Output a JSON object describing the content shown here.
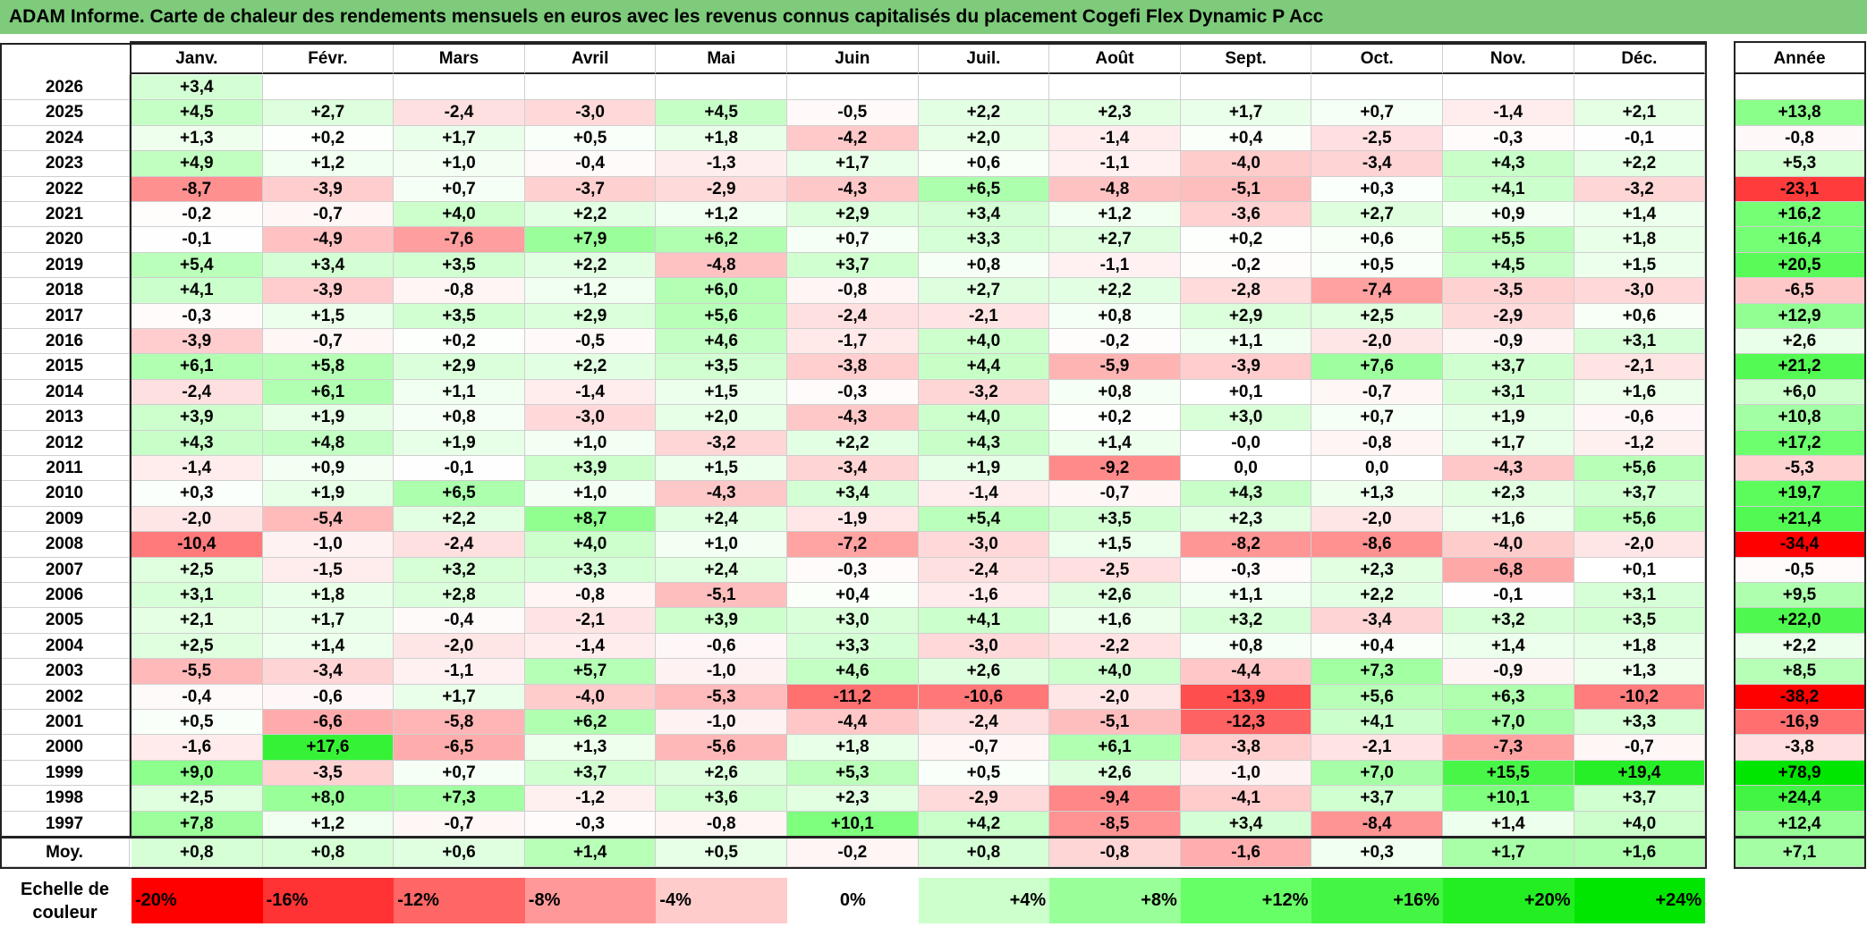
{
  "title": "ADAM Informe. Carte de chaleur des rendements mensuels en euros avec les revenus connus capitalisés du placement Cogefi Flex Dynamic P Acc",
  "chart_data": {
    "type": "heatmap",
    "title": "ADAM Informe. Carte de chaleur des rendements mensuels en euros avec les revenus connus capitalisés du placement Cogefi Flex Dynamic P Acc",
    "columns": [
      "Janv.",
      "Févr.",
      "Mars",
      "Avril",
      "Mai",
      "Juin",
      "Juil.",
      "Août",
      "Sept.",
      "Oct.",
      "Nov.",
      "Déc."
    ],
    "year_column_label": "Année",
    "rows": [
      {
        "year": "2026",
        "months": [
          "+3,4",
          "",
          "",
          "",
          "",
          "",
          "",
          "",
          "",
          "",
          "",
          ""
        ],
        "annual": ""
      },
      {
        "year": "2025",
        "months": [
          "+4,5",
          "+2,7",
          "-2,4",
          "-3,0",
          "+4,5",
          "-0,5",
          "+2,2",
          "+2,3",
          "+1,7",
          "+0,7",
          "-1,4",
          "+2,1"
        ],
        "annual": "+13,8"
      },
      {
        "year": "2024",
        "months": [
          "+1,3",
          "+0,2",
          "+1,7",
          "+0,5",
          "+1,8",
          "-4,2",
          "+2,0",
          "-1,4",
          "+0,4",
          "-2,5",
          "-0,3",
          "-0,1"
        ],
        "annual": "-0,8"
      },
      {
        "year": "2023",
        "months": [
          "+4,9",
          "+1,2",
          "+1,0",
          "-0,4",
          "-1,3",
          "+1,7",
          "+0,6",
          "-1,1",
          "-4,0",
          "-3,4",
          "+4,3",
          "+2,2"
        ],
        "annual": "+5,3"
      },
      {
        "year": "2022",
        "months": [
          "-8,7",
          "-3,9",
          "+0,7",
          "-3,7",
          "-2,9",
          "-4,3",
          "+6,5",
          "-4,8",
          "-5,1",
          "+0,3",
          "+4,1",
          "-3,2"
        ],
        "annual": "-23,1"
      },
      {
        "year": "2021",
        "months": [
          "-0,2",
          "-0,7",
          "+4,0",
          "+2,2",
          "+1,2",
          "+2,9",
          "+3,4",
          "+1,2",
          "-3,6",
          "+2,7",
          "+0,9",
          "+1,4"
        ],
        "annual": "+16,2"
      },
      {
        "year": "2020",
        "months": [
          "-0,1",
          "-4,9",
          "-7,6",
          "+7,9",
          "+6,2",
          "+0,7",
          "+3,3",
          "+2,7",
          "+0,2",
          "+0,6",
          "+5,5",
          "+1,8"
        ],
        "annual": "+16,4"
      },
      {
        "year": "2019",
        "months": [
          "+5,4",
          "+3,4",
          "+3,5",
          "+2,2",
          "-4,8",
          "+3,7",
          "+0,8",
          "-1,1",
          "-0,2",
          "+0,5",
          "+4,5",
          "+1,5"
        ],
        "annual": "+20,5"
      },
      {
        "year": "2018",
        "months": [
          "+4,1",
          "-3,9",
          "-0,8",
          "+1,2",
          "+6,0",
          "-0,8",
          "+2,7",
          "+2,2",
          "-2,8",
          "-7,4",
          "-3,5",
          "-3,0"
        ],
        "annual": "-6,5"
      },
      {
        "year": "2017",
        "months": [
          "-0,3",
          "+1,5",
          "+3,5",
          "+2,9",
          "+5,6",
          "-2,4",
          "-2,1",
          "+0,8",
          "+2,9",
          "+2,5",
          "-2,9",
          "+0,6"
        ],
        "annual": "+12,9"
      },
      {
        "year": "2016",
        "months": [
          "-3,9",
          "-0,7",
          "+0,2",
          "-0,5",
          "+4,6",
          "-1,7",
          "+4,0",
          "-0,2",
          "+1,1",
          "-2,0",
          "-0,9",
          "+3,1"
        ],
        "annual": "+2,6"
      },
      {
        "year": "2015",
        "months": [
          "+6,1",
          "+5,8",
          "+2,9",
          "+2,2",
          "+3,5",
          "-3,8",
          "+4,4",
          "-5,9",
          "-3,9",
          "+7,6",
          "+3,7",
          "-2,1"
        ],
        "annual": "+21,2"
      },
      {
        "year": "2014",
        "months": [
          "-2,4",
          "+6,1",
          "+1,1",
          "-1,4",
          "+1,5",
          "-0,3",
          "-3,2",
          "+0,8",
          "+0,1",
          "-0,7",
          "+3,1",
          "+1,6"
        ],
        "annual": "+6,0"
      },
      {
        "year": "2013",
        "months": [
          "+3,9",
          "+1,9",
          "+0,8",
          "-3,0",
          "+2,0",
          "-4,3",
          "+4,0",
          "+0,2",
          "+3,0",
          "+0,7",
          "+1,9",
          "-0,6"
        ],
        "annual": "+10,8"
      },
      {
        "year": "2012",
        "months": [
          "+4,3",
          "+4,8",
          "+1,9",
          "+1,0",
          "-3,2",
          "+2,2",
          "+4,3",
          "+1,4",
          "-0,0",
          "-0,8",
          "+1,7",
          "-1,2"
        ],
        "annual": "+17,2"
      },
      {
        "year": "2011",
        "months": [
          "-1,4",
          "+0,9",
          "-0,1",
          "+3,9",
          "+1,5",
          "-3,4",
          "+1,9",
          "-9,2",
          "0,0",
          "0,0",
          "-4,3",
          "+5,6"
        ],
        "annual": "-5,3"
      },
      {
        "year": "2010",
        "months": [
          "+0,3",
          "+1,9",
          "+6,5",
          "+1,0",
          "-4,3",
          "+3,4",
          "-1,4",
          "-0,7",
          "+4,3",
          "+1,3",
          "+2,3",
          "+3,7"
        ],
        "annual": "+19,7"
      },
      {
        "year": "2009",
        "months": [
          "-2,0",
          "-5,4",
          "+2,2",
          "+8,7",
          "+2,4",
          "-1,9",
          "+5,4",
          "+3,5",
          "+2,3",
          "-2,0",
          "+1,6",
          "+5,6"
        ],
        "annual": "+21,4"
      },
      {
        "year": "2008",
        "months": [
          "-10,4",
          "-1,0",
          "-2,4",
          "+4,0",
          "+1,0",
          "-7,2",
          "-3,0",
          "+1,5",
          "-8,2",
          "-8,6",
          "-4,0",
          "-2,0"
        ],
        "annual": "-34,4"
      },
      {
        "year": "2007",
        "months": [
          "+2,5",
          "-1,5",
          "+3,2",
          "+3,3",
          "+2,4",
          "-0,3",
          "-2,4",
          "-2,5",
          "-0,3",
          "+2,3",
          "-6,8",
          "+0,1"
        ],
        "annual": "-0,5"
      },
      {
        "year": "2006",
        "months": [
          "+3,1",
          "+1,8",
          "+2,8",
          "-0,8",
          "-5,1",
          "+0,4",
          "-1,6",
          "+2,6",
          "+1,1",
          "+2,2",
          "-0,1",
          "+3,1"
        ],
        "annual": "+9,5"
      },
      {
        "year": "2005",
        "months": [
          "+2,1",
          "+1,7",
          "-0,4",
          "-2,1",
          "+3,9",
          "+3,0",
          "+4,1",
          "+1,6",
          "+3,2",
          "-3,4",
          "+3,2",
          "+3,5"
        ],
        "annual": "+22,0"
      },
      {
        "year": "2004",
        "months": [
          "+2,5",
          "+1,4",
          "-2,0",
          "-1,4",
          "-0,6",
          "+3,3",
          "-3,0",
          "-2,2",
          "+0,8",
          "+0,4",
          "+1,4",
          "+1,8"
        ],
        "annual": "+2,2"
      },
      {
        "year": "2003",
        "months": [
          "-5,5",
          "-3,4",
          "-1,1",
          "+5,7",
          "-1,0",
          "+4,6",
          "+2,6",
          "+4,0",
          "-4,4",
          "+7,3",
          "-0,9",
          "+1,3"
        ],
        "annual": "+8,5"
      },
      {
        "year": "2002",
        "months": [
          "-0,4",
          "-0,6",
          "+1,7",
          "-4,0",
          "-5,3",
          "-11,2",
          "-10,6",
          "-2,0",
          "-13,9",
          "+5,6",
          "+6,3",
          "-10,2"
        ],
        "annual": "-38,2"
      },
      {
        "year": "2001",
        "months": [
          "+0,5",
          "-6,6",
          "-5,8",
          "+6,2",
          "-1,0",
          "-4,4",
          "-2,4",
          "-5,1",
          "-12,3",
          "+4,1",
          "+7,0",
          "+3,3"
        ],
        "annual": "-16,9"
      },
      {
        "year": "2000",
        "months": [
          "-1,6",
          "+17,6",
          "-6,5",
          "+1,3",
          "-5,6",
          "+1,8",
          "-0,7",
          "+6,1",
          "-3,8",
          "-2,1",
          "-7,3",
          "-0,7"
        ],
        "annual": "-3,8"
      },
      {
        "year": "1999",
        "months": [
          "+9,0",
          "-3,5",
          "+0,7",
          "+3,7",
          "+2,6",
          "+5,3",
          "+0,5",
          "+2,6",
          "-1,0",
          "+7,0",
          "+15,5",
          "+19,4"
        ],
        "annual": "+78,9"
      },
      {
        "year": "1998",
        "months": [
          "+2,5",
          "+8,0",
          "+7,3",
          "-1,2",
          "+3,6",
          "+2,3",
          "-2,9",
          "-9,4",
          "-4,1",
          "+3,7",
          "+10,1",
          "+3,7"
        ],
        "annual": "+24,4"
      },
      {
        "year": "1997",
        "months": [
          "+7,8",
          "+1,2",
          "-0,7",
          "-0,3",
          "-0,8",
          "+10,1",
          "+4,2",
          "-8,5",
          "+3,4",
          "-8,4",
          "+1,4",
          "+4,0"
        ],
        "annual": "+12,4"
      }
    ],
    "average_row": {
      "label": "Moy.",
      "months": [
        "+0,8",
        "+0,8",
        "+0,6",
        "+1,4",
        "+0,5",
        "-0,2",
        "+0,8",
        "-0,8",
        "-1,6",
        "+0,3",
        "+1,7",
        "+1,6"
      ],
      "annual": "+7,1"
    },
    "color_scale": {
      "label": "Echelle de couleur",
      "stops": [
        {
          "label": "-20%",
          "value": -20,
          "color": "#ff0000"
        },
        {
          "label": "-16%",
          "value": -16,
          "color": "#ff3333"
        },
        {
          "label": "-12%",
          "value": -12,
          "color": "#ff6666"
        },
        {
          "label": "-8%",
          "value": -8,
          "color": "#ff9999"
        },
        {
          "label": "-4%",
          "value": -4,
          "color": "#ffcccc"
        },
        {
          "label": "0%",
          "value": 0,
          "color": "#ffffff"
        },
        {
          "label": "+4%",
          "value": 4,
          "color": "#ccffcc"
        },
        {
          "label": "+8%",
          "value": 8,
          "color": "#99ff99"
        },
        {
          "label": "+12%",
          "value": 12,
          "color": "#66ff66"
        },
        {
          "label": "+16%",
          "value": 16,
          "color": "#44f544"
        },
        {
          "label": "+20%",
          "value": 20,
          "color": "#22ee22"
        },
        {
          "label": "+24%",
          "value": 24,
          "color": "#00e600"
        }
      ]
    }
  },
  "colors": {
    "title_bar": "#7dcb7b",
    "negative_max": "#ff0000",
    "neutral": "#ffffff",
    "positive_max": "#00e600"
  }
}
